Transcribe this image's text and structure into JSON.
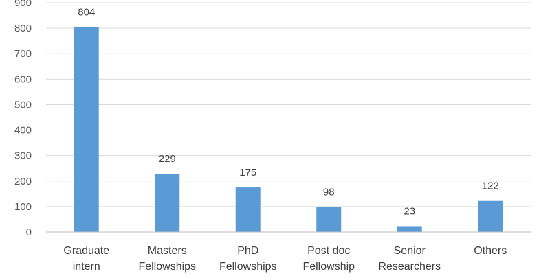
{
  "chart_data": {
    "type": "bar",
    "categories": [
      [
        "Graduate",
        "intern"
      ],
      [
        "Masters",
        "Fellowships"
      ],
      [
        "PhD",
        "Fellowships"
      ],
      [
        "Post doc",
        "Fellowship"
      ],
      [
        "Senior",
        "Researchers"
      ],
      [
        "Others"
      ]
    ],
    "values": [
      804,
      229,
      175,
      98,
      23,
      122
    ],
    "data_labels": [
      "804",
      "229",
      "175",
      "98",
      "23",
      "122"
    ],
    "yticks": [
      "0",
      "100",
      "200",
      "300",
      "400",
      "500",
      "600",
      "700",
      "800",
      "900"
    ],
    "ylim": [
      0,
      900
    ],
    "title": "",
    "xlabel": "",
    "ylabel": "",
    "grid": true,
    "bar_color": "#5b9bd5",
    "grid_color": "#d9d9d9"
  }
}
